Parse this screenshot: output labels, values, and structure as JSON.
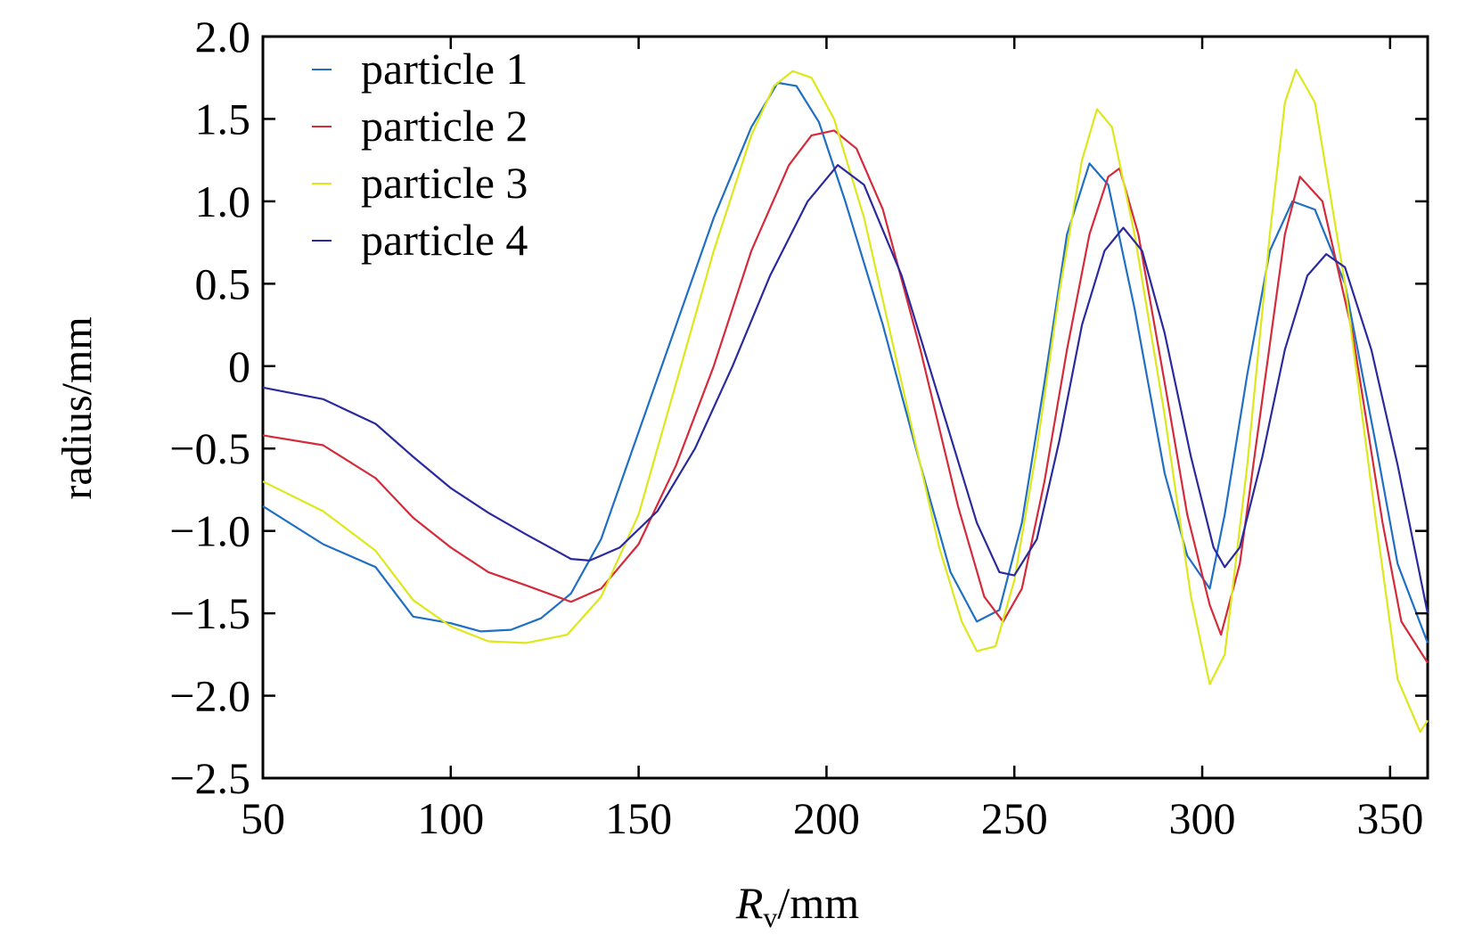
{
  "chart_data": {
    "type": "line",
    "xlabel_main": "R",
    "xlabel_sub": "v",
    "xlabel_unit": "/mm",
    "ylabel": "radius/mm",
    "xlim": [
      50,
      360
    ],
    "ylim": [
      -2.5,
      2.0
    ],
    "x_ticks": [
      50,
      100,
      150,
      200,
      250,
      300,
      350
    ],
    "x_tick_labels": [
      "50",
      "100",
      "150",
      "200",
      "250",
      "300",
      "350"
    ],
    "y_ticks": [
      2.0,
      1.5,
      1.0,
      0.5,
      0,
      -0.5,
      -1.0,
      -1.5,
      -2.0,
      -2.5
    ],
    "y_tick_labels": [
      "2.0",
      "1.5",
      "1.0",
      "0.5",
      "0",
      "−0.5",
      "−1.0",
      "−1.5",
      "−2.0",
      "−2.5"
    ],
    "grid": false,
    "legend_position": "top-left",
    "series": [
      {
        "name": "particle 1",
        "color": "#1f6fc4",
        "x": [
          50,
          66,
          80,
          90,
          100,
          108,
          116,
          124,
          132,
          140,
          150,
          160,
          170,
          180,
          187,
          192,
          198,
          205,
          215,
          225,
          233,
          240,
          246,
          252,
          258,
          264,
          270,
          275,
          282,
          290,
          296,
          302,
          306,
          312,
          318,
          324,
          330,
          338,
          346,
          352,
          360
        ],
        "y": [
          -0.85,
          -1.08,
          -1.22,
          -1.52,
          -1.56,
          -1.61,
          -1.6,
          -1.53,
          -1.38,
          -1.05,
          -0.4,
          0.25,
          0.9,
          1.45,
          1.72,
          1.7,
          1.48,
          1.0,
          0.25,
          -0.6,
          -1.25,
          -1.55,
          -1.48,
          -0.95,
          -0.1,
          0.8,
          1.23,
          1.1,
          0.35,
          -0.65,
          -1.15,
          -1.35,
          -0.9,
          -0.05,
          0.7,
          1.0,
          0.95,
          0.5,
          -0.45,
          -1.2,
          -1.68
        ]
      },
      {
        "name": "particle 2",
        "color": "#d42a3a",
        "x": [
          50,
          66,
          80,
          90,
          100,
          110,
          120,
          132,
          140,
          150,
          160,
          170,
          180,
          190,
          196,
          202,
          208,
          215,
          225,
          235,
          242,
          247,
          252,
          258,
          264,
          270,
          275,
          278,
          283,
          290,
          296,
          302,
          305,
          310,
          316,
          322,
          326,
          332,
          340,
          348,
          353,
          360
        ],
        "y": [
          -0.42,
          -0.48,
          -0.68,
          -0.92,
          -1.1,
          -1.25,
          -1.33,
          -1.43,
          -1.35,
          -1.08,
          -0.6,
          0.0,
          0.7,
          1.22,
          1.4,
          1.43,
          1.32,
          0.95,
          0.1,
          -0.85,
          -1.4,
          -1.55,
          -1.35,
          -0.7,
          0.1,
          0.8,
          1.15,
          1.2,
          0.8,
          -0.1,
          -0.9,
          -1.45,
          -1.63,
          -1.2,
          -0.2,
          0.8,
          1.15,
          1.0,
          0.2,
          -0.95,
          -1.55,
          -1.8
        ]
      },
      {
        "name": "particle 3",
        "color": "#dde81a",
        "x": [
          50,
          66,
          80,
          90,
          100,
          110,
          120,
          131,
          140,
          150,
          160,
          170,
          180,
          186,
          191,
          196,
          202,
          210,
          220,
          230,
          236,
          240,
          245,
          250,
          256,
          262,
          268,
          272,
          276,
          282,
          290,
          297,
          302,
          306,
          312,
          318,
          322,
          325,
          330,
          338,
          346,
          352,
          358,
          360
        ],
        "y": [
          -0.7,
          -0.88,
          -1.12,
          -1.42,
          -1.58,
          -1.67,
          -1.68,
          -1.63,
          -1.4,
          -0.9,
          -0.1,
          0.7,
          1.4,
          1.7,
          1.79,
          1.75,
          1.5,
          0.9,
          -0.1,
          -1.1,
          -1.55,
          -1.73,
          -1.7,
          -1.3,
          -0.5,
          0.45,
          1.25,
          1.56,
          1.45,
          0.8,
          -0.3,
          -1.4,
          -1.93,
          -1.75,
          -0.6,
          0.8,
          1.6,
          1.8,
          1.6,
          0.5,
          -0.9,
          -1.9,
          -2.22,
          -2.15
        ]
      },
      {
        "name": "particle 4",
        "color": "#2a2a9e",
        "x": [
          50,
          66,
          80,
          90,
          100,
          110,
          120,
          132,
          137,
          145,
          155,
          165,
          175,
          185,
          195,
          203,
          210,
          220,
          230,
          240,
          246,
          250,
          256,
          262,
          268,
          274,
          279,
          284,
          290,
          297,
          303,
          306,
          310,
          316,
          322,
          328,
          333,
          338,
          345,
          352,
          360
        ],
        "y": [
          -0.13,
          -0.2,
          -0.35,
          -0.55,
          -0.74,
          -0.89,
          -1.02,
          -1.17,
          -1.18,
          -1.1,
          -0.88,
          -0.5,
          0.0,
          0.55,
          1.0,
          1.22,
          1.1,
          0.55,
          -0.2,
          -0.95,
          -1.25,
          -1.27,
          -1.05,
          -0.45,
          0.25,
          0.7,
          0.84,
          0.7,
          0.2,
          -0.55,
          -1.1,
          -1.22,
          -1.1,
          -0.55,
          0.1,
          0.55,
          0.68,
          0.6,
          0.1,
          -0.6,
          -1.5
        ]
      }
    ]
  }
}
